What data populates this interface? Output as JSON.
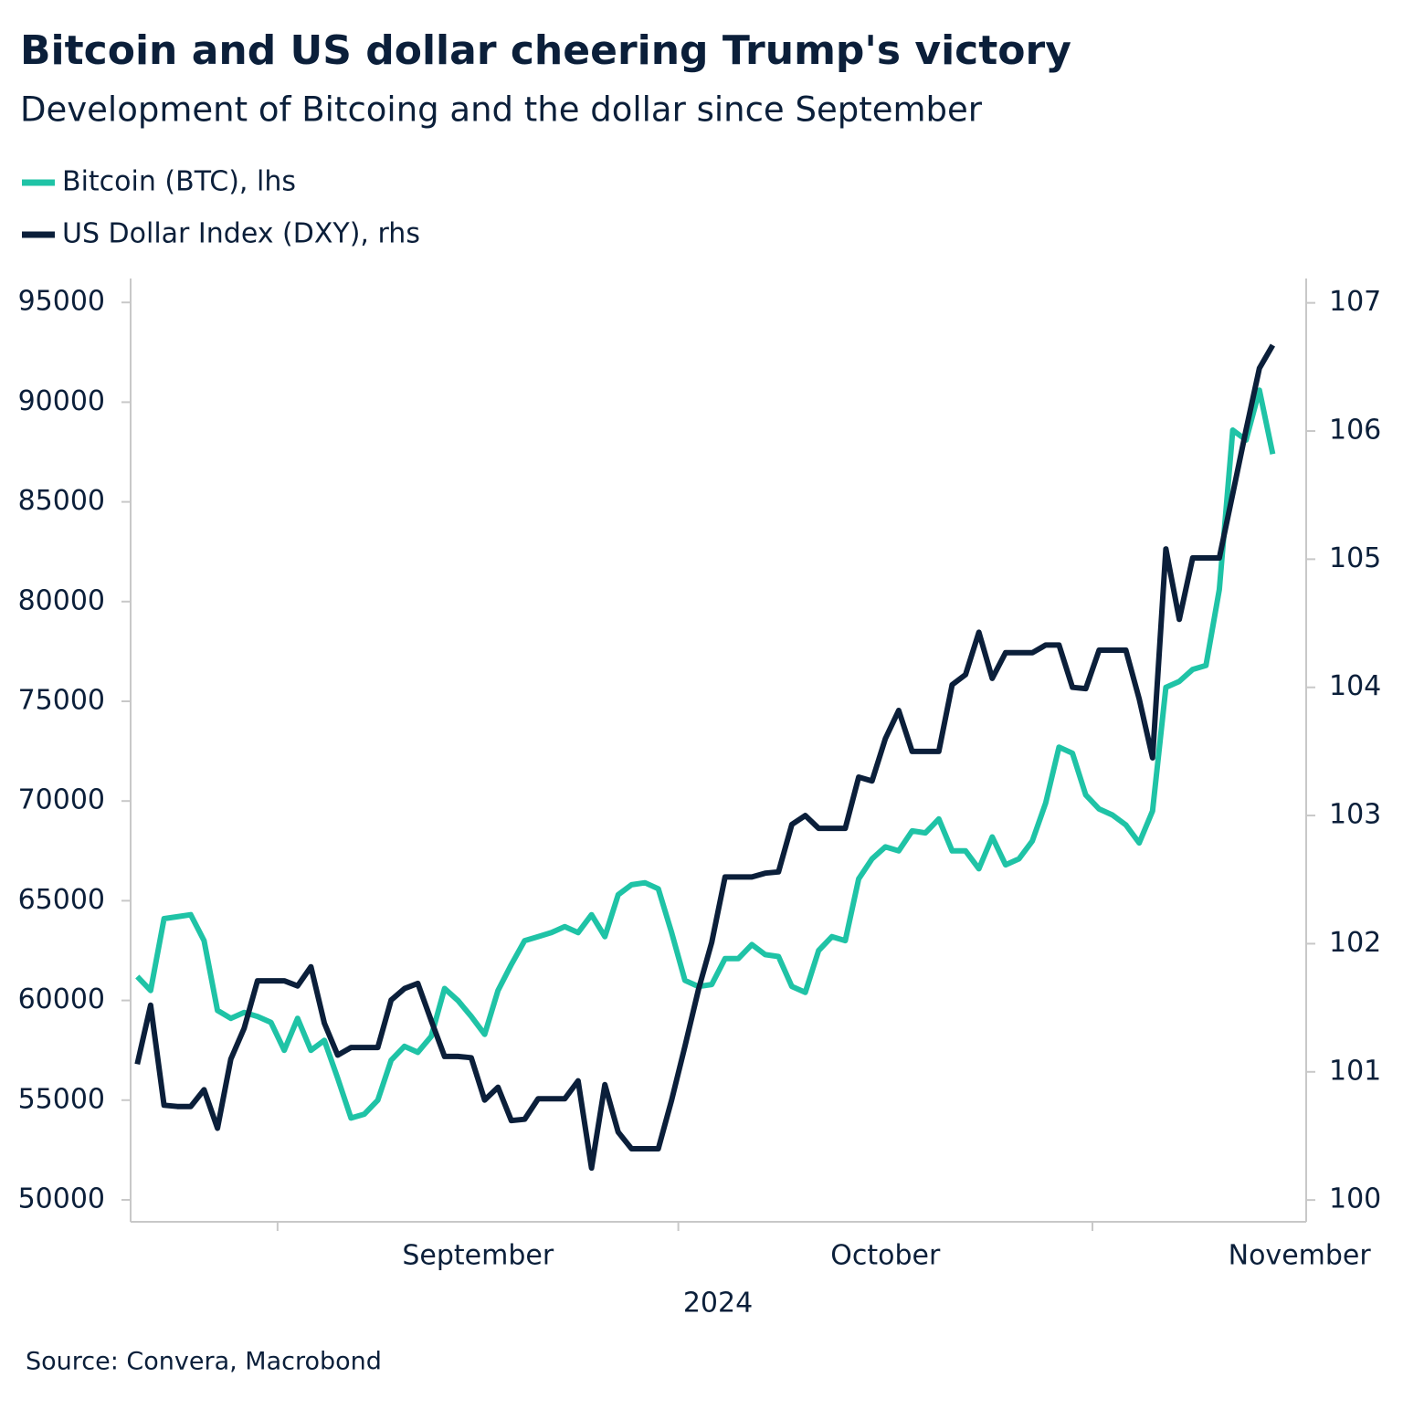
{
  "chart_data": {
    "type": "line",
    "title": "Bitcoin and US dollar cheering Trump's victory",
    "subtitle": "Development of Bitcoing and the dollar since September",
    "xlabel": "2024",
    "source": "Source: Convera, Macrobond",
    "month_labels": [
      "September",
      "October",
      "November"
    ],
    "xlim": [
      -0.5,
      87.5
    ],
    "xticks": [
      10.5,
      40.5,
      71.5
    ],
    "ylim": [
      48900,
      96200
    ],
    "yticks": [
      50000,
      55000,
      60000,
      65000,
      70000,
      75000,
      80000,
      85000,
      90000,
      95000
    ],
    "y2lim": [
      99.83,
      107.19
    ],
    "y2ticks": [
      100,
      101,
      102,
      103,
      104,
      105,
      106,
      107
    ],
    "grid": false,
    "legend": "top-left",
    "series": [
      {
        "name": "Bitcoin (BTC), lhs",
        "color": "#1fc3a6",
        "axis": "y",
        "values": [
          61200,
          60500,
          64100,
          64200,
          64300,
          63000,
          59500,
          59100,
          59400,
          59200,
          58900,
          57500,
          59100,
          57500,
          58000,
          56100,
          54100,
          54300,
          55000,
          57000,
          57700,
          57400,
          58200,
          60600,
          60000,
          59200,
          58300,
          60500,
          61800,
          63000,
          63200,
          63400,
          63700,
          63400,
          64300,
          63200,
          65300,
          65800,
          65900,
          65600,
          63400,
          61000,
          60700,
          60800,
          62100,
          62100,
          62800,
          62300,
          62200,
          60700,
          60400,
          62500,
          63200,
          63000,
          66100,
          67100,
          67700,
          67500,
          68500,
          68400,
          69100,
          67500,
          67500,
          66600,
          68200,
          66800,
          67100,
          68000,
          69900,
          72700,
          72400,
          70300,
          69600,
          69300,
          68800,
          67900,
          69500,
          75700,
          76000,
          76600,
          76800,
          80600,
          88600,
          88100,
          90600,
          87400
        ]
      },
      {
        "name": "US Dollar Index (DXY), rhs",
        "color": "#0b1f3a",
        "axis": "y2",
        "values": [
          101.06,
          101.52,
          100.74,
          100.73,
          100.73,
          100.86,
          100.56,
          101.1,
          101.34,
          101.71,
          101.71,
          101.71,
          101.67,
          101.82,
          101.38,
          101.13,
          101.19,
          101.19,
          101.19,
          101.56,
          101.65,
          101.69,
          101.4,
          101.12,
          101.12,
          101.11,
          100.78,
          100.88,
          100.62,
          100.63,
          100.79,
          100.79,
          100.79,
          100.93,
          100.25,
          100.9,
          100.53,
          100.4,
          100.4,
          100.4,
          100.78,
          101.2,
          101.64,
          102.01,
          102.52,
          102.52,
          102.52,
          102.55,
          102.56,
          102.93,
          103.0,
          102.9,
          102.9,
          102.9,
          103.3,
          103.27,
          103.6,
          103.82,
          103.5,
          103.5,
          103.5,
          104.02,
          104.1,
          104.43,
          104.07,
          104.27,
          104.27,
          104.27,
          104.33,
          104.33,
          104.0,
          103.99,
          104.29,
          104.29,
          104.29,
          103.91,
          103.45,
          105.08,
          104.53,
          105.01,
          105.01,
          105.01,
          105.51,
          106.01,
          106.49,
          106.67
        ]
      }
    ]
  }
}
